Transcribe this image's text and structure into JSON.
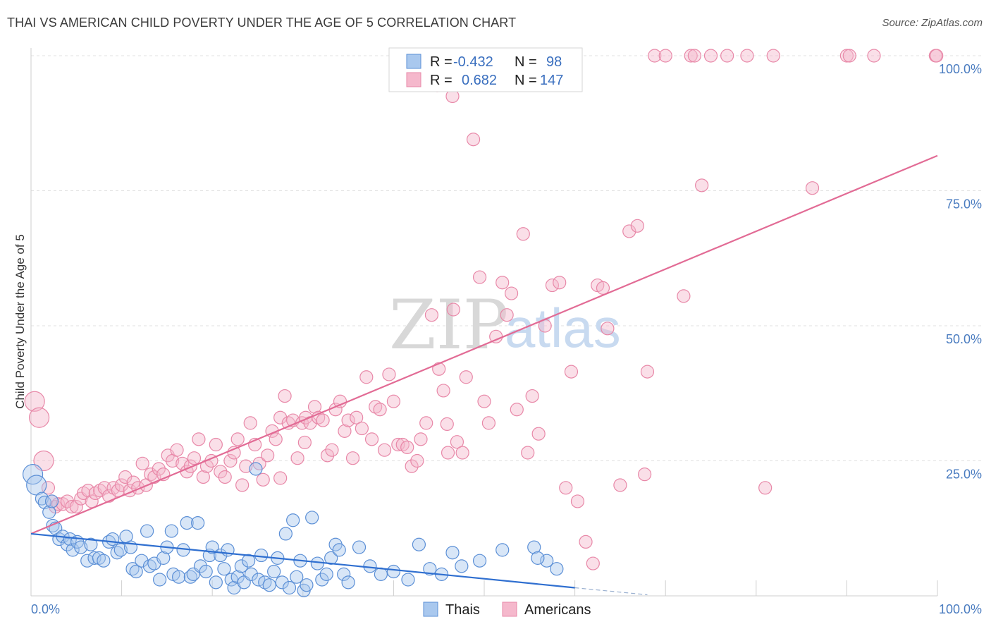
{
  "header": {
    "title": "THAI VS AMERICAN CHILD POVERTY UNDER THE AGE OF 5 CORRELATION CHART",
    "source": "Source: ZipAtlas.com"
  },
  "watermark": {
    "zip": "ZIP",
    "atlas": "atlas"
  },
  "colors": {
    "thais_fill": "#a9c8ee",
    "thais_stroke": "#5b8fd6",
    "thais_line": "#2f6fd0",
    "americans_fill": "#f5b8cc",
    "americans_stroke": "#e888a8",
    "americans_line": "#e26b95",
    "tick_label": "#4a7cc0",
    "grid": "#e0e0e0"
  },
  "legend": {
    "rows": [
      {
        "r_label": "R =",
        "r_value": "-0.432",
        "n_label": "N =",
        "n_value": "98"
      },
      {
        "r_label": "R =",
        "r_value": "0.682",
        "n_label": "N =",
        "n_value": "147"
      }
    ]
  },
  "chart_data": {
    "type": "scatter",
    "title": "THAI VS AMERICAN CHILD POVERTY UNDER THE AGE OF 5 CORRELATION CHART",
    "xlabel": "",
    "ylabel": "Child Poverty Under the Age of 5",
    "xlim": [
      0,
      100
    ],
    "ylim": [
      0,
      100
    ],
    "x_tick_labels": [
      "0.0%",
      "100.0%"
    ],
    "y_ticks": [
      25,
      50,
      75,
      100
    ],
    "y_tick_labels": [
      "25.0%",
      "50.0%",
      "75.0%",
      "100.0%"
    ],
    "grid": true,
    "legend_position": "top-center",
    "series": [
      {
        "name": "Thais",
        "r": -0.432,
        "n": 98,
        "trend": {
          "x": [
            0,
            60
          ],
          "y": [
            11.5,
            1.5
          ],
          "dashed_extension": {
            "x": [
              60,
              68
            ],
            "y": [
              1.5,
              0.2
            ]
          }
        },
        "points": [
          [
            0.2,
            22.5
          ],
          [
            0.6,
            20.5
          ],
          [
            1.2,
            18.0
          ],
          [
            1.5,
            17.3
          ],
          [
            2.0,
            15.5
          ],
          [
            2.3,
            17.5
          ],
          [
            2.4,
            13.0
          ],
          [
            2.7,
            12.5
          ],
          [
            3.1,
            10.5
          ],
          [
            3.5,
            11.0
          ],
          [
            4.0,
            9.5
          ],
          [
            4.3,
            10.5
          ],
          [
            4.6,
            8.5
          ],
          [
            5.1,
            10.0
          ],
          [
            5.5,
            9.0
          ],
          [
            6.2,
            6.5
          ],
          [
            6.6,
            9.5
          ],
          [
            7.0,
            7.0
          ],
          [
            7.5,
            7.0
          ],
          [
            8.0,
            6.5
          ],
          [
            8.6,
            10.0
          ],
          [
            9.0,
            10.5
          ],
          [
            9.5,
            8.0
          ],
          [
            9.9,
            8.5
          ],
          [
            10.5,
            11.0
          ],
          [
            11.0,
            9.0
          ],
          [
            11.2,
            5.0
          ],
          [
            11.6,
            4.5
          ],
          [
            12.2,
            6.5
          ],
          [
            12.8,
            12.0
          ],
          [
            13.1,
            5.5
          ],
          [
            13.6,
            6.0
          ],
          [
            14.2,
            3.0
          ],
          [
            14.6,
            7.0
          ],
          [
            15.0,
            9.0
          ],
          [
            15.5,
            12.0
          ],
          [
            15.7,
            4.0
          ],
          [
            16.3,
            3.5
          ],
          [
            16.8,
            8.5
          ],
          [
            17.2,
            13.5
          ],
          [
            17.6,
            3.5
          ],
          [
            17.9,
            4.0
          ],
          [
            18.4,
            13.5
          ],
          [
            18.7,
            5.5
          ],
          [
            19.3,
            4.5
          ],
          [
            19.7,
            7.5
          ],
          [
            20.0,
            9.0
          ],
          [
            20.4,
            2.5
          ],
          [
            20.9,
            7.5
          ],
          [
            21.3,
            5.0
          ],
          [
            21.7,
            8.5
          ],
          [
            22.1,
            3.0
          ],
          [
            22.4,
            1.5
          ],
          [
            22.8,
            3.5
          ],
          [
            23.2,
            5.5
          ],
          [
            23.5,
            2.5
          ],
          [
            24.0,
            6.5
          ],
          [
            24.3,
            4.0
          ],
          [
            24.8,
            23.5
          ],
          [
            25.1,
            3.0
          ],
          [
            25.4,
            7.5
          ],
          [
            25.8,
            2.5
          ],
          [
            26.3,
            2.0
          ],
          [
            26.8,
            4.5
          ],
          [
            27.2,
            7.0
          ],
          [
            27.7,
            2.5
          ],
          [
            28.1,
            11.5
          ],
          [
            28.5,
            1.5
          ],
          [
            28.9,
            14.0
          ],
          [
            29.3,
            3.5
          ],
          [
            29.7,
            6.5
          ],
          [
            30.1,
            1.0
          ],
          [
            30.4,
            2.0
          ],
          [
            31.0,
            14.5
          ],
          [
            31.6,
            6.0
          ],
          [
            32.1,
            3.0
          ],
          [
            32.6,
            4.0
          ],
          [
            33.1,
            7.0
          ],
          [
            33.6,
            9.5
          ],
          [
            34.0,
            8.5
          ],
          [
            34.5,
            4.0
          ],
          [
            35.0,
            2.5
          ],
          [
            36.2,
            9.0
          ],
          [
            37.4,
            5.5
          ],
          [
            38.6,
            4.0
          ],
          [
            40.0,
            4.5
          ],
          [
            41.6,
            3.0
          ],
          [
            42.8,
            9.5
          ],
          [
            44.0,
            5.0
          ],
          [
            45.3,
            4.0
          ],
          [
            46.5,
            8.0
          ],
          [
            47.5,
            5.5
          ],
          [
            56.9,
            6.5
          ],
          [
            58.0,
            5.0
          ],
          [
            55.5,
            9.0
          ],
          [
            55.9,
            7.0
          ],
          [
            52.0,
            8.5
          ],
          [
            49.5,
            6.5
          ]
        ]
      },
      {
        "name": "Americans",
        "r": 0.682,
        "n": 147,
        "trend": {
          "x": [
            0,
            100
          ],
          "y": [
            11.5,
            81.5
          ]
        },
        "points": [
          [
            0.4,
            36.0
          ],
          [
            0.9,
            33.0
          ],
          [
            1.4,
            25.0
          ],
          [
            1.9,
            20.0
          ],
          [
            2.3,
            17.5
          ],
          [
            2.7,
            16.5
          ],
          [
            3.0,
            17.0
          ],
          [
            3.5,
            17.0
          ],
          [
            4.0,
            17.5
          ],
          [
            4.5,
            16.5
          ],
          [
            5.0,
            16.5
          ],
          [
            5.5,
            18.0
          ],
          [
            5.8,
            19.0
          ],
          [
            6.3,
            19.5
          ],
          [
            6.7,
            17.5
          ],
          [
            7.1,
            19.0
          ],
          [
            7.6,
            19.5
          ],
          [
            8.1,
            20.0
          ],
          [
            8.6,
            18.5
          ],
          [
            9.1,
            20.0
          ],
          [
            9.6,
            19.5
          ],
          [
            10.0,
            20.5
          ],
          [
            10.4,
            22.0
          ],
          [
            10.9,
            19.5
          ],
          [
            11.3,
            21.0
          ],
          [
            11.8,
            20.0
          ],
          [
            12.3,
            24.5
          ],
          [
            12.7,
            20.5
          ],
          [
            13.2,
            22.5
          ],
          [
            13.6,
            22.0
          ],
          [
            14.1,
            23.5
          ],
          [
            14.6,
            22.5
          ],
          [
            15.1,
            26.0
          ],
          [
            15.6,
            25.0
          ],
          [
            16.1,
            27.0
          ],
          [
            16.7,
            24.5
          ],
          [
            17.2,
            23.0
          ],
          [
            17.6,
            24.0
          ],
          [
            18.0,
            25.5
          ],
          [
            18.5,
            29.0
          ],
          [
            19.0,
            22.0
          ],
          [
            19.4,
            24.0
          ],
          [
            19.9,
            25.0
          ],
          [
            20.4,
            28.0
          ],
          [
            20.9,
            23.0
          ],
          [
            21.4,
            22.0
          ],
          [
            22.0,
            25.0
          ],
          [
            22.4,
            26.5
          ],
          [
            22.8,
            29.0
          ],
          [
            23.3,
            20.5
          ],
          [
            23.7,
            24.0
          ],
          [
            24.2,
            32.0
          ],
          [
            24.7,
            28.0
          ],
          [
            25.2,
            24.5
          ],
          [
            25.6,
            21.5
          ],
          [
            26.1,
            26.0
          ],
          [
            26.6,
            30.5
          ],
          [
            27.0,
            29.0
          ],
          [
            27.5,
            33.0
          ],
          [
            28.0,
            37.0
          ],
          [
            28.4,
            32.0
          ],
          [
            28.9,
            32.5
          ],
          [
            29.4,
            25.5
          ],
          [
            29.9,
            32.0
          ],
          [
            30.3,
            33.0
          ],
          [
            30.8,
            32.0
          ],
          [
            31.3,
            35.0
          ],
          [
            31.7,
            33.0
          ],
          [
            32.2,
            32.5
          ],
          [
            32.7,
            26.0
          ],
          [
            33.2,
            27.0
          ],
          [
            33.6,
            34.5
          ],
          [
            34.1,
            36.0
          ],
          [
            34.6,
            30.5
          ],
          [
            35.0,
            32.5
          ],
          [
            35.5,
            25.5
          ],
          [
            35.9,
            33.0
          ],
          [
            36.5,
            31.0
          ],
          [
            37.0,
            40.5
          ],
          [
            37.6,
            29.0
          ],
          [
            38.0,
            35.0
          ],
          [
            38.5,
            34.5
          ],
          [
            39.0,
            27.0
          ],
          [
            39.5,
            41.0
          ],
          [
            40.0,
            36.0
          ],
          [
            40.5,
            28.0
          ],
          [
            41.0,
            28.0
          ],
          [
            41.5,
            27.5
          ],
          [
            42.0,
            24.0
          ],
          [
            42.6,
            25.0
          ],
          [
            43.0,
            29.0
          ],
          [
            43.6,
            32.0
          ],
          [
            44.2,
            52.0
          ],
          [
            45.0,
            42.0
          ],
          [
            45.5,
            38.0
          ],
          [
            46.0,
            26.5
          ],
          [
            46.6,
            53.0
          ],
          [
            47.0,
            28.5
          ],
          [
            47.6,
            26.5
          ],
          [
            48.0,
            40.5
          ],
          [
            48.8,
            84.5
          ],
          [
            49.5,
            59.0
          ],
          [
            50.0,
            36.0
          ],
          [
            50.5,
            32.0
          ],
          [
            51.3,
            48.0
          ],
          [
            52.0,
            58.0
          ],
          [
            52.5,
            52.0
          ],
          [
            53.0,
            56.0
          ],
          [
            53.6,
            34.5
          ],
          [
            54.3,
            67.0
          ],
          [
            54.8,
            26.5
          ],
          [
            55.3,
            37.0
          ],
          [
            56.0,
            30.0
          ],
          [
            56.7,
            50.0
          ],
          [
            57.5,
            57.5
          ],
          [
            58.3,
            58.0
          ],
          [
            59.0,
            20.0
          ],
          [
            59.6,
            41.5
          ],
          [
            60.3,
            17.5
          ],
          [
            61.2,
            10.0
          ],
          [
            62.0,
            6.0
          ],
          [
            62.5,
            57.5
          ],
          [
            63.1,
            57.0
          ],
          [
            63.6,
            49.5
          ],
          [
            65.0,
            20.5
          ],
          [
            66.0,
            67.5
          ],
          [
            66.9,
            68.5
          ],
          [
            67.7,
            22.5
          ],
          [
            68.0,
            41.5
          ],
          [
            68.8,
            100.0
          ],
          [
            70.0,
            100.0
          ],
          [
            72.0,
            55.5
          ],
          [
            72.8,
            100.0
          ],
          [
            73.2,
            100.0
          ],
          [
            74.0,
            76.0
          ],
          [
            75.0,
            100.0
          ],
          [
            76.8,
            100.0
          ],
          [
            79.0,
            100.0
          ],
          [
            81.0,
            20.0
          ],
          [
            81.9,
            100.0
          ],
          [
            86.2,
            75.5
          ],
          [
            90.0,
            100.0
          ],
          [
            90.3,
            100.0
          ],
          [
            93.0,
            100.0
          ],
          [
            99.8,
            100.0
          ],
          [
            99.9,
            100.0
          ],
          [
            44.8,
            94.5
          ],
          [
            46.5,
            92.5
          ],
          [
            45.9,
            31.8
          ],
          [
            27.5,
            21.8
          ],
          [
            30.2,
            28.4
          ]
        ]
      }
    ]
  }
}
